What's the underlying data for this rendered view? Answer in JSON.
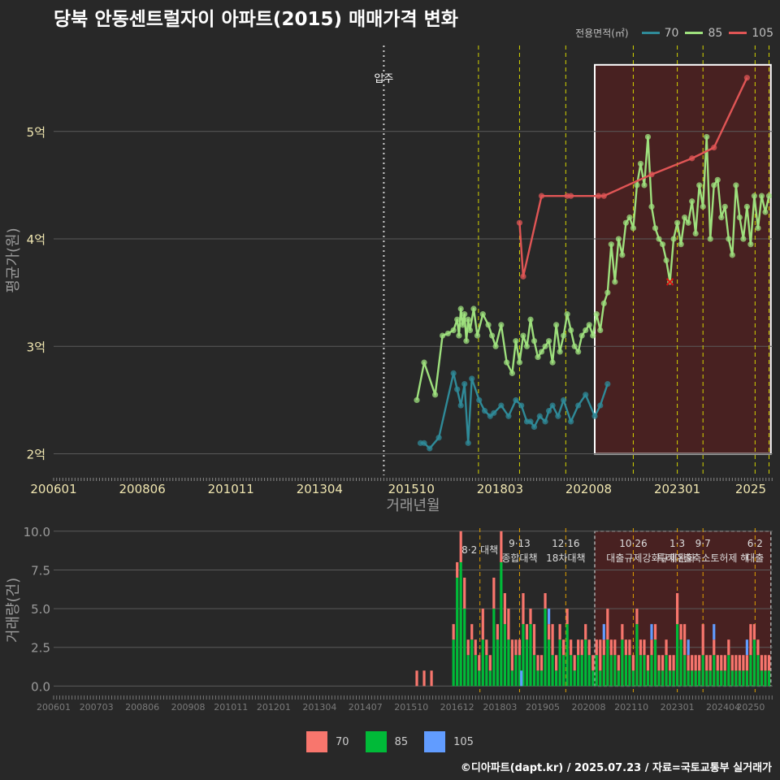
{
  "title": "당북 안동센트럴자이 아파트(2015) 매매가격 변화",
  "legend": {
    "title": "전용면적(㎡)",
    "items": [
      {
        "label": "70",
        "color": "#2f8a98"
      },
      {
        "label": "85",
        "color": "#9ee07d"
      },
      {
        "label": "105",
        "color": "#e05555"
      }
    ]
  },
  "bar_legend": [
    {
      "label": "70",
      "color": "#f8766d"
    },
    {
      "label": "85",
      "color": "#00ba38"
    },
    {
      "label": "105",
      "color": "#619cff"
    }
  ],
  "footer": "©디아파트(dapt.kr) / 2025.07.23 / 자료=국토교통부 실거래가",
  "chart_data": [
    {
      "type": "line",
      "title": "당북 안동센트럴자이 아파트(2015) 매매가격 변화",
      "xlabel": "거래년월",
      "ylabel": "평균가(원)",
      "xlim": [
        2006.0,
        2025.6
      ],
      "ylim": [
        1.8,
        5.8
      ],
      "x_ticks": [
        {
          "x": 2006.0,
          "label": "200601"
        },
        {
          "x": 2008.417,
          "label": "200806"
        },
        {
          "x": 2010.833,
          "label": "201011"
        },
        {
          "x": 2013.25,
          "label": "201304"
        },
        {
          "x": 2015.75,
          "label": "201510"
        },
        {
          "x": 2018.167,
          "label": "201803"
        },
        {
          "x": 2020.583,
          "label": "202008"
        },
        {
          "x": 2023.0,
          "label": "202301"
        },
        {
          "x": 2025.0,
          "label": "2025"
        }
      ],
      "y_ticks": [
        {
          "y": 2,
          "label": "2억"
        },
        {
          "y": 3,
          "label": "3억"
        },
        {
          "y": 4,
          "label": "4억"
        },
        {
          "y": 5,
          "label": "5억"
        }
      ],
      "move_in": {
        "x": 2015.0,
        "label": "입주"
      },
      "policy_lines": [
        2017.58,
        2018.7,
        2019.96,
        2021.8,
        2023.0,
        2023.7,
        2025.12,
        2025.5
      ],
      "highlight_range": [
        2020.75,
        2025.55
      ],
      "marker_x": {
        "x": 2022.8,
        "y": 3.6
      },
      "series": [
        {
          "name": "70",
          "x": [
            2016.0,
            2016.1,
            2016.25,
            2016.5,
            2016.9,
            2017.0,
            2017.1,
            2017.2,
            2017.3,
            2017.4,
            2017.6,
            2017.75,
            2017.9,
            2018.0,
            2018.2,
            2018.4,
            2018.6,
            2018.75,
            2018.9,
            2019.0,
            2019.1,
            2019.25,
            2019.4,
            2019.5,
            2019.6,
            2019.75,
            2019.9,
            2020.1,
            2020.3,
            2020.5,
            2020.75,
            2020.9,
            2021.1
          ],
          "values": [
            2.1,
            2.1,
            2.05,
            2.15,
            2.75,
            2.6,
            2.45,
            2.65,
            2.1,
            2.7,
            2.5,
            2.4,
            2.35,
            2.38,
            2.45,
            2.35,
            2.5,
            2.45,
            2.3,
            2.3,
            2.25,
            2.35,
            2.3,
            2.4,
            2.45,
            2.35,
            2.5,
            2.3,
            2.45,
            2.55,
            2.35,
            2.45,
            2.65
          ]
        },
        {
          "name": "85",
          "x": [
            2015.9,
            2016.1,
            2016.4,
            2016.6,
            2016.75,
            2016.9,
            2017.0,
            2017.05,
            2017.1,
            2017.15,
            2017.2,
            2017.25,
            2017.3,
            2017.35,
            2017.45,
            2017.55,
            2017.7,
            2017.85,
            2017.95,
            2018.05,
            2018.2,
            2018.35,
            2018.5,
            2018.6,
            2018.7,
            2018.8,
            2018.9,
            2019.0,
            2019.1,
            2019.2,
            2019.3,
            2019.4,
            2019.5,
            2019.6,
            2019.7,
            2019.8,
            2019.9,
            2020.0,
            2020.1,
            2020.2,
            2020.3,
            2020.4,
            2020.5,
            2020.6,
            2020.7,
            2020.8,
            2020.9,
            2021.0,
            2021.1,
            2021.2,
            2021.3,
            2021.4,
            2021.5,
            2021.6,
            2021.7,
            2021.8,
            2021.9,
            2022.0,
            2022.1,
            2022.2,
            2022.3,
            2022.4,
            2022.5,
            2022.6,
            2022.7,
            2022.8,
            2022.9,
            2023.0,
            2023.1,
            2023.2,
            2023.3,
            2023.4,
            2023.5,
            2023.6,
            2023.7,
            2023.8,
            2023.9,
            2024.0,
            2024.1,
            2024.2,
            2024.3,
            2024.4,
            2024.5,
            2024.6,
            2024.7,
            2024.8,
            2024.9,
            2025.0,
            2025.1,
            2025.2,
            2025.3,
            2025.4,
            2025.5
          ],
          "values": [
            2.5,
            2.85,
            2.55,
            3.1,
            3.12,
            3.15,
            3.25,
            3.1,
            3.35,
            3.2,
            3.3,
            3.05,
            3.25,
            3.15,
            3.35,
            3.1,
            3.3,
            3.2,
            3.1,
            3.0,
            3.2,
            2.85,
            2.75,
            3.05,
            2.85,
            3.1,
            3.0,
            3.25,
            3.05,
            2.9,
            2.95,
            3.0,
            3.05,
            2.85,
            3.2,
            2.95,
            3.1,
            3.3,
            3.15,
            3.0,
            2.95,
            3.1,
            3.15,
            3.2,
            3.1,
            3.3,
            3.15,
            3.4,
            3.5,
            3.95,
            3.6,
            4.0,
            3.85,
            4.15,
            4.2,
            4.1,
            4.5,
            4.7,
            4.5,
            4.95,
            4.3,
            4.1,
            4.0,
            3.95,
            3.8,
            3.6,
            4.0,
            4.15,
            3.95,
            4.2,
            4.15,
            4.35,
            4.05,
            4.5,
            4.3,
            4.95,
            4.0,
            4.5,
            4.55,
            4.2,
            4.3,
            4.0,
            3.85,
            4.5,
            4.2,
            4.0,
            4.3,
            3.95,
            4.4,
            4.1,
            4.4,
            4.25,
            4.4
          ]
        },
        {
          "name": "105",
          "x": [
            2018.7,
            2018.8,
            2019.3,
            2020.0,
            2020.1,
            2020.85,
            2021.0,
            2022.3,
            2023.4,
            2024.0,
            2024.9
          ],
          "values": [
            4.15,
            3.65,
            4.4,
            4.4,
            4.4,
            4.4,
            4.4,
            4.6,
            4.75,
            4.85,
            5.5
          ]
        }
      ]
    },
    {
      "type": "bar",
      "xlabel": "거래년월",
      "ylabel": "거래량(건)",
      "ylim": [
        -0.4,
        10.2
      ],
      "y_ticks": [
        {
          "y": 0,
          "label": "0.0"
        },
        {
          "y": 2.5,
          "label": "2.5"
        },
        {
          "y": 5,
          "label": "5.0"
        },
        {
          "y": 7.5,
          "label": "7.5"
        },
        {
          "y": 10,
          "label": "10.0"
        }
      ],
      "x_ticks": [
        {
          "x": 2006.0,
          "label": "200601"
        },
        {
          "x": 2007.167,
          "label": "200703"
        },
        {
          "x": 2008.417,
          "label": "200806"
        },
        {
          "x": 2009.667,
          "label": "200908"
        },
        {
          "x": 2010.833,
          "label": "201011"
        },
        {
          "x": 2012.0,
          "label": "201201"
        },
        {
          "x": 2013.25,
          "label": "201304"
        },
        {
          "x": 2014.5,
          "label": "201407"
        },
        {
          "x": 2015.75,
          "label": "201510"
        },
        {
          "x": 2017.0,
          "label": "201612"
        },
        {
          "x": 2018.167,
          "label": "201803"
        },
        {
          "x": 2019.333,
          "label": "201905"
        },
        {
          "x": 2020.583,
          "label": "202008"
        },
        {
          "x": 2021.75,
          "label": "202110"
        },
        {
          "x": 2023.0,
          "label": "202301"
        },
        {
          "x": 2024.25,
          "label": "202404"
        },
        {
          "x": 2025.0,
          "label": "20250"
        }
      ],
      "annotations": [
        {
          "x": 2017.62,
          "date": "8·2",
          "text": "대책",
          "inline": true
        },
        {
          "x": 2018.7,
          "date": "9·13",
          "text": "종합대책"
        },
        {
          "x": 2019.96,
          "date": "12·16",
          "text": "18차대책"
        },
        {
          "x": 2021.8,
          "date": "10·26",
          "text": "대출규제강화"
        },
        {
          "x": 2023.0,
          "date": "1·3",
          "text": "규제완화"
        },
        {
          "x": 2023.7,
          "date": "9·7",
          "text": "특례대출축소토허제 해"
        },
        {
          "x": 2025.12,
          "date": "6·2",
          "text": "대출"
        }
      ],
      "series": [
        {
          "name": "70",
          "x": [
            2015.9,
            2016.1,
            2016.3,
            2016.9,
            2017.0,
            2017.1,
            2017.2,
            2017.3,
            2017.4,
            2017.5,
            2017.6,
            2017.7,
            2017.8,
            2017.9,
            2018.0,
            2018.1,
            2018.2,
            2018.3,
            2018.4,
            2018.5,
            2018.6,
            2018.7,
            2018.8,
            2018.9,
            2019.0,
            2019.1,
            2019.2,
            2019.3,
            2019.4,
            2019.5,
            2019.6,
            2019.7,
            2019.8,
            2019.9,
            2020.0,
            2020.1,
            2020.2,
            2020.3,
            2020.4,
            2020.5,
            2020.6,
            2020.7,
            2020.8,
            2020.9,
            2021.0,
            2021.1,
            2021.2,
            2021.3,
            2021.4,
            2021.5,
            2021.6,
            2021.7,
            2021.8,
            2021.9,
            2022.0,
            2022.1,
            2022.2,
            2022.3,
            2022.4,
            2022.5,
            2022.6,
            2022.7,
            2022.8,
            2022.9,
            2023.0,
            2023.1,
            2023.2,
            2023.3,
            2023.4,
            2023.5,
            2023.6,
            2023.7,
            2023.8,
            2023.9,
            2024.0,
            2024.1,
            2024.2,
            2024.3,
            2024.4,
            2024.5,
            2024.6,
            2024.7,
            2024.8,
            2024.9,
            2025.0,
            2025.1,
            2025.2,
            2025.3,
            2025.4,
            2025.5
          ],
          "values": [
            1,
            1,
            1,
            1,
            1,
            2,
            2,
            1,
            1,
            1,
            1,
            2,
            1,
            1,
            2,
            1,
            2,
            2,
            2,
            2,
            1,
            1,
            2,
            1,
            1,
            2,
            1,
            1,
            1,
            1,
            2,
            1,
            1,
            1,
            1,
            1,
            1,
            1,
            1,
            1,
            1,
            1,
            1,
            2,
            1,
            2,
            1,
            1,
            1,
            1,
            1,
            1,
            1,
            1,
            1,
            1,
            1,
            1,
            1,
            1,
            1,
            1,
            1,
            1,
            2,
            1,
            2,
            1,
            1,
            1,
            1,
            2,
            1,
            1,
            1,
            1,
            1,
            1,
            1,
            1,
            1,
            1,
            1,
            1,
            2,
            1,
            1,
            1,
            1,
            1
          ]
        },
        {
          "name": "85",
          "x": [
            2015.9,
            2016.1,
            2016.3,
            2016.9,
            2017.0,
            2017.1,
            2017.2,
            2017.3,
            2017.4,
            2017.5,
            2017.6,
            2017.7,
            2017.8,
            2017.9,
            2018.0,
            2018.1,
            2018.2,
            2018.3,
            2018.4,
            2018.5,
            2018.6,
            2018.7,
            2018.8,
            2018.9,
            2019.0,
            2019.1,
            2019.2,
            2019.3,
            2019.4,
            2019.5,
            2019.6,
            2019.7,
            2019.8,
            2019.9,
            2020.0,
            2020.1,
            2020.2,
            2020.3,
            2020.4,
            2020.5,
            2020.6,
            2020.7,
            2020.8,
            2020.9,
            2021.0,
            2021.1,
            2021.2,
            2021.3,
            2021.4,
            2021.5,
            2021.6,
            2021.7,
            2021.8,
            2021.9,
            2022.0,
            2022.1,
            2022.2,
            2022.3,
            2022.4,
            2022.5,
            2022.6,
            2022.7,
            2022.8,
            2022.9,
            2023.0,
            2023.1,
            2023.2,
            2023.3,
            2023.4,
            2023.5,
            2023.6,
            2023.7,
            2023.8,
            2023.9,
            2024.0,
            2024.1,
            2024.2,
            2024.3,
            2024.4,
            2024.5,
            2024.6,
            2024.7,
            2024.8,
            2024.9,
            2025.0,
            2025.1,
            2025.2,
            2025.3,
            2025.4,
            2025.5
          ],
          "values": [
            0,
            0,
            0,
            3,
            7,
            8,
            5,
            2,
            3,
            2,
            1,
            3,
            2,
            1,
            5,
            3,
            8,
            4,
            3,
            1,
            2,
            2,
            4,
            3,
            4,
            2,
            1,
            1,
            5,
            3,
            2,
            1,
            3,
            2,
            4,
            2,
            1,
            2,
            2,
            3,
            2,
            1,
            2,
            1,
            2,
            3,
            2,
            2,
            1,
            3,
            2,
            2,
            1,
            4,
            2,
            2,
            1,
            2,
            3,
            1,
            1,
            2,
            1,
            1,
            4,
            3,
            2,
            1,
            1,
            1,
            1,
            2,
            1,
            1,
            2,
            1,
            1,
            1,
            2,
            1,
            1,
            1,
            1,
            1,
            2,
            3,
            2,
            1,
            1,
            1
          ]
        },
        {
          "name": "105",
          "x": [
            2018.75,
            2019.5,
            2021.0,
            2022.3,
            2023.3,
            2024.0,
            2024.9
          ],
          "values": [
            1,
            1,
            1,
            1,
            1,
            1,
            1
          ]
        }
      ]
    }
  ]
}
